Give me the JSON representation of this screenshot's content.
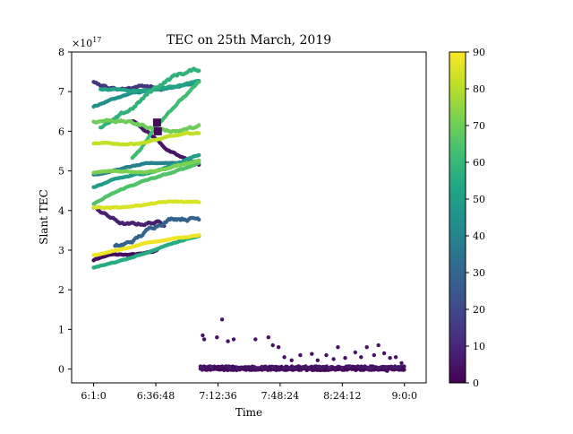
{
  "chart_data": {
    "type": "scatter",
    "title": "TEC on 25th March, 2019",
    "xlabel": "Time",
    "ylabel": "Slant TEC",
    "y_exponent_label": "×10",
    "y_exponent_power": "17",
    "x_ticks": [
      {
        "label": "6:1:0",
        "seconds": 21660
      },
      {
        "label": "6:36:48",
        "seconds": 23808
      },
      {
        "label": "7:12:36",
        "seconds": 25956
      },
      {
        "label": "7:48:24",
        "seconds": 28104
      },
      {
        "label": "8:24:12",
        "seconds": 30252
      },
      {
        "label": "9:0:0",
        "seconds": 32400
      }
    ],
    "xlim_seconds": [
      20900,
      33150
    ],
    "y_ticks": [
      "0",
      "1",
      "2",
      "3",
      "4",
      "5",
      "6",
      "7",
      "8"
    ],
    "ylim": [
      -0.35,
      8
    ],
    "colorbar": {
      "min": 0,
      "max": 90,
      "ticks": [
        "0",
        "10",
        "20",
        "30",
        "40",
        "50",
        "60",
        "70",
        "80",
        "90"
      ],
      "colormap": "viridis"
    },
    "series": [
      {
        "t_start": 21660,
        "t_end": 23850,
        "v_start": 2.75,
        "v_end": 3.02,
        "elev": 3,
        "noise": 0.05
      },
      {
        "t_start": 21660,
        "t_end": 24100,
        "v_start": 3.95,
        "v_end": 3.55,
        "elev": 8,
        "noise": 0.12
      },
      {
        "t_start": 21660,
        "t_end": 24000,
        "v_start": 7.25,
        "v_end": 7.0,
        "elev": 14,
        "noise": 0.1
      },
      {
        "t_start": 23000,
        "t_end": 25300,
        "v_start": 6.2,
        "v_end": 5.1,
        "elev": 5,
        "noise": 0.08
      },
      {
        "t_start": 22400,
        "t_end": 25300,
        "v_start": 3.2,
        "v_end": 3.9,
        "elev": 28,
        "noise": 0.15
      },
      {
        "t_start": 21660,
        "t_end": 25300,
        "v_start": 2.55,
        "v_end": 3.35,
        "elev": 55,
        "noise": 0.03
      },
      {
        "t_start": 21660,
        "t_end": 25300,
        "v_start": 2.9,
        "v_end": 3.4,
        "elev": 88,
        "noise": 0.03
      },
      {
        "t_start": 21660,
        "t_end": 25300,
        "v_start": 4.95,
        "v_end": 5.3,
        "elev": 40,
        "noise": 0.04
      },
      {
        "t_start": 21660,
        "t_end": 25300,
        "v_start": 4.55,
        "v_end": 5.4,
        "elev": 50,
        "noise": 0.05
      },
      {
        "t_start": 21660,
        "t_end": 25300,
        "v_start": 4.2,
        "v_end": 5.25,
        "elev": 65,
        "noise": 0.05
      },
      {
        "t_start": 21660,
        "t_end": 25300,
        "v_start": 4.9,
        "v_end": 5.2,
        "elev": 72,
        "noise": 0.05
      },
      {
        "t_start": 21660,
        "t_end": 25300,
        "v_start": 4.1,
        "v_end": 4.2,
        "elev": 85,
        "noise": 0.04
      },
      {
        "t_start": 21660,
        "t_end": 25300,
        "v_start": 5.65,
        "v_end": 5.9,
        "elev": 82,
        "noise": 0.05
      },
      {
        "t_start": 21660,
        "t_end": 25300,
        "v_start": 6.2,
        "v_end": 6.1,
        "elev": 70,
        "noise": 0.1
      },
      {
        "t_start": 21660,
        "t_end": 25300,
        "v_start": 6.65,
        "v_end": 7.3,
        "elev": 45,
        "noise": 0.06
      },
      {
        "t_start": 21900,
        "t_end": 25300,
        "v_start": 6.2,
        "v_end": 7.6,
        "elev": 58,
        "noise": 0.15
      },
      {
        "t_start": 23000,
        "t_end": 25300,
        "v_start": 5.4,
        "v_end": 7.3,
        "elev": 62,
        "noise": 0.08
      },
      {
        "t_start": 21900,
        "t_end": 25300,
        "v_start": 7.0,
        "v_end": 7.2,
        "elev": 52,
        "noise": 0.05
      }
    ],
    "markers": [
      {
        "t": 23850,
        "v": 6.22,
        "elev": 2
      },
      {
        "t": 23880,
        "v": 6.0,
        "elev": 2
      }
    ],
    "lower_points": [
      [
        25430,
        0.85
      ],
      [
        25480,
        0.75
      ],
      [
        25920,
        0.8
      ],
      [
        26100,
        1.25
      ],
      [
        26300,
        0.7
      ],
      [
        26500,
        0.75
      ],
      [
        27250,
        0.75
      ],
      [
        27700,
        0.8
      ],
      [
        27850,
        0.6
      ],
      [
        28050,
        0.55
      ],
      [
        28250,
        0.3
      ],
      [
        28500,
        0.22
      ],
      [
        28800,
        0.35
      ],
      [
        29200,
        0.38
      ],
      [
        29400,
        0.22
      ],
      [
        29700,
        0.35
      ],
      [
        29950,
        0.25
      ],
      [
        30100,
        0.55
      ],
      [
        30350,
        0.28
      ],
      [
        30700,
        0.42
      ],
      [
        30900,
        0.3
      ],
      [
        31100,
        0.55
      ],
      [
        31350,
        0.35
      ],
      [
        31500,
        0.6
      ],
      [
        31700,
        0.4
      ],
      [
        31900,
        0.28
      ],
      [
        32100,
        0.3
      ],
      [
        32300,
        0.15
      ],
      [
        31800,
        -0.05
      ]
    ]
  }
}
